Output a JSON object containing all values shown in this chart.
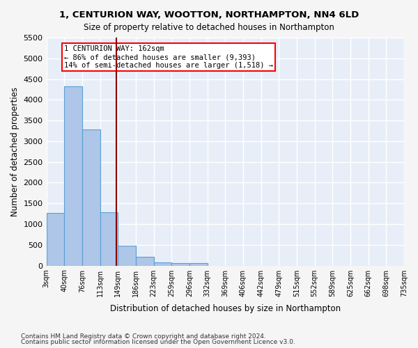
{
  "title": "1, CENTURION WAY, WOOTTON, NORTHAMPTON, NN4 6LD",
  "subtitle": "Size of property relative to detached houses in Northampton",
  "xlabel": "Distribution of detached houses by size in Northampton",
  "ylabel": "Number of detached properties",
  "bar_color": "#aec6e8",
  "bar_edge_color": "#5a9fd4",
  "background_color": "#e8eef8",
  "grid_color": "#ffffff",
  "bin_labels": [
    "3sqm",
    "40sqm",
    "76sqm",
    "113sqm",
    "149sqm",
    "186sqm",
    "223sqm",
    "259sqm",
    "296sqm",
    "332sqm",
    "369sqm",
    "406sqm",
    "442sqm",
    "479sqm",
    "515sqm",
    "552sqm",
    "589sqm",
    "625sqm",
    "662sqm",
    "698sqm",
    "735sqm"
  ],
  "bar_heights": [
    1270,
    4330,
    3290,
    1290,
    480,
    210,
    80,
    55,
    55,
    0,
    0,
    0,
    0,
    0,
    0,
    0,
    0,
    0,
    0,
    0
  ],
  "property_size": 162,
  "property_label": "1 CENTURION WAY: 162sqm",
  "annotation_line1": "1 CENTURION WAY: 162sqm",
  "annotation_line2": "← 86% of detached houses are smaller (9,393)",
  "annotation_line3": "14% of semi-detached houses are larger (1,518) →",
  "vline_color": "#8b0000",
  "vline_x": 3.9,
  "ylim": [
    0,
    5500
  ],
  "yticks": [
    0,
    500,
    1000,
    1500,
    2000,
    2500,
    3000,
    3500,
    4000,
    4500,
    5000,
    5500
  ],
  "footnote1": "Contains HM Land Registry data © Crown copyright and database right 2024.",
  "footnote2": "Contains public sector information licensed under the Open Government Licence v3.0."
}
